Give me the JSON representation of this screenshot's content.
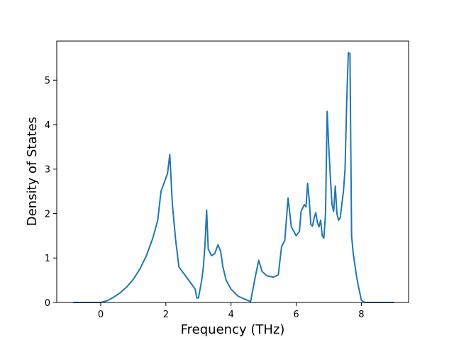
{
  "chart_data": {
    "type": "line",
    "title": "",
    "xlabel": "Frequency (THz)",
    "ylabel": "Density of States",
    "xlim": [
      -1.35,
      9.45
    ],
    "ylim": [
      0,
      5.88
    ],
    "grid": false,
    "legend": null,
    "color": "#1f77b4",
    "x_ticks": [
      0,
      2,
      4,
      6,
      8
    ],
    "x_tick_labels": [
      "0",
      "2",
      "4",
      "6",
      "8"
    ],
    "y_ticks": [
      0,
      1,
      2,
      3,
      4,
      5
    ],
    "y_tick_labels": [
      "0",
      "1",
      "2",
      "3",
      "4",
      "5"
    ],
    "series": [
      {
        "x": [
          -0.85,
          0.0,
          0.2,
          0.4,
          0.6,
          0.8,
          1.0,
          1.2,
          1.4,
          1.6,
          1.75,
          1.85,
          1.95,
          2.05,
          2.12,
          2.2,
          2.3,
          2.4,
          2.5,
          2.7,
          2.9,
          2.95,
          3.0,
          3.1,
          3.15,
          3.2,
          3.25,
          3.3,
          3.4,
          3.5,
          3.6,
          3.68,
          3.75,
          3.85,
          4.0,
          4.2,
          4.4,
          4.6,
          4.75,
          4.85,
          4.95,
          5.1,
          5.3,
          5.45,
          5.55,
          5.65,
          5.75,
          5.85,
          6.0,
          6.1,
          6.15,
          6.25,
          6.3,
          6.35,
          6.4,
          6.45,
          6.5,
          6.55,
          6.6,
          6.65,
          6.7,
          6.75,
          6.8,
          6.85,
          6.9,
          6.95,
          7.0,
          7.05,
          7.1,
          7.15,
          7.2,
          7.25,
          7.3,
          7.35,
          7.4,
          7.45,
          7.5,
          7.55,
          7.6,
          7.65,
          7.7,
          7.75,
          7.8,
          7.85,
          7.9,
          8.0,
          8.1,
          8.2,
          9.0
        ],
        "y": [
          0.0,
          0.0,
          0.04,
          0.12,
          0.22,
          0.35,
          0.52,
          0.75,
          1.05,
          1.45,
          1.85,
          2.5,
          2.7,
          2.9,
          3.33,
          2.2,
          1.4,
          0.8,
          0.7,
          0.5,
          0.3,
          0.1,
          0.1,
          0.5,
          0.8,
          1.3,
          2.08,
          1.2,
          1.05,
          1.1,
          1.3,
          1.15,
          0.8,
          0.5,
          0.3,
          0.15,
          0.08,
          0.02,
          0.6,
          0.95,
          0.7,
          0.6,
          0.57,
          0.62,
          1.25,
          1.4,
          2.35,
          1.7,
          1.5,
          1.6,
          2.05,
          2.2,
          2.15,
          2.68,
          2.3,
          1.75,
          1.72,
          1.9,
          2.02,
          1.8,
          1.7,
          1.85,
          1.5,
          1.45,
          2.0,
          4.3,
          3.5,
          2.8,
          2.2,
          2.05,
          2.62,
          2.0,
          1.85,
          1.9,
          2.2,
          2.5,
          3.0,
          4.5,
          5.62,
          5.6,
          1.5,
          1.1,
          0.85,
          0.6,
          0.4,
          0.05,
          0.0,
          0.0,
          0.0
        ]
      }
    ]
  }
}
